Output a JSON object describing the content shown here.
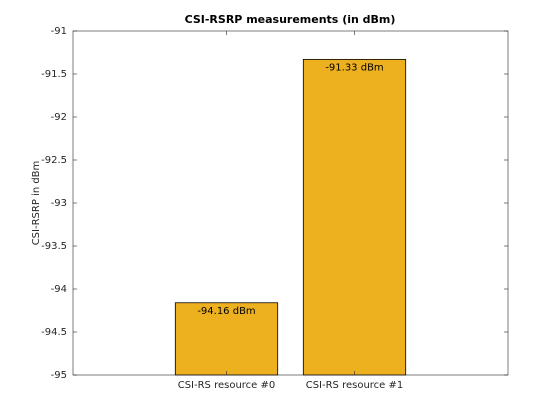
{
  "chart_data": {
    "type": "bar",
    "title": "CSI-RSRP measurements (in dBm)",
    "y_label": "CSI-RSRP in dBm",
    "categories": [
      "CSI-RS resource #0",
      "CSI-RS resource #1"
    ],
    "values": [
      -94.16,
      -91.33
    ],
    "value_labels": [
      "-94.16 dBm",
      "-91.33 dBm"
    ],
    "color": "#edb120",
    "ylim": [
      -95,
      -91
    ],
    "yticks": [
      -95,
      -94.5,
      -94,
      -93.5,
      -93,
      -92.5,
      -92,
      -91.5,
      -91
    ],
    "grid": false
  }
}
